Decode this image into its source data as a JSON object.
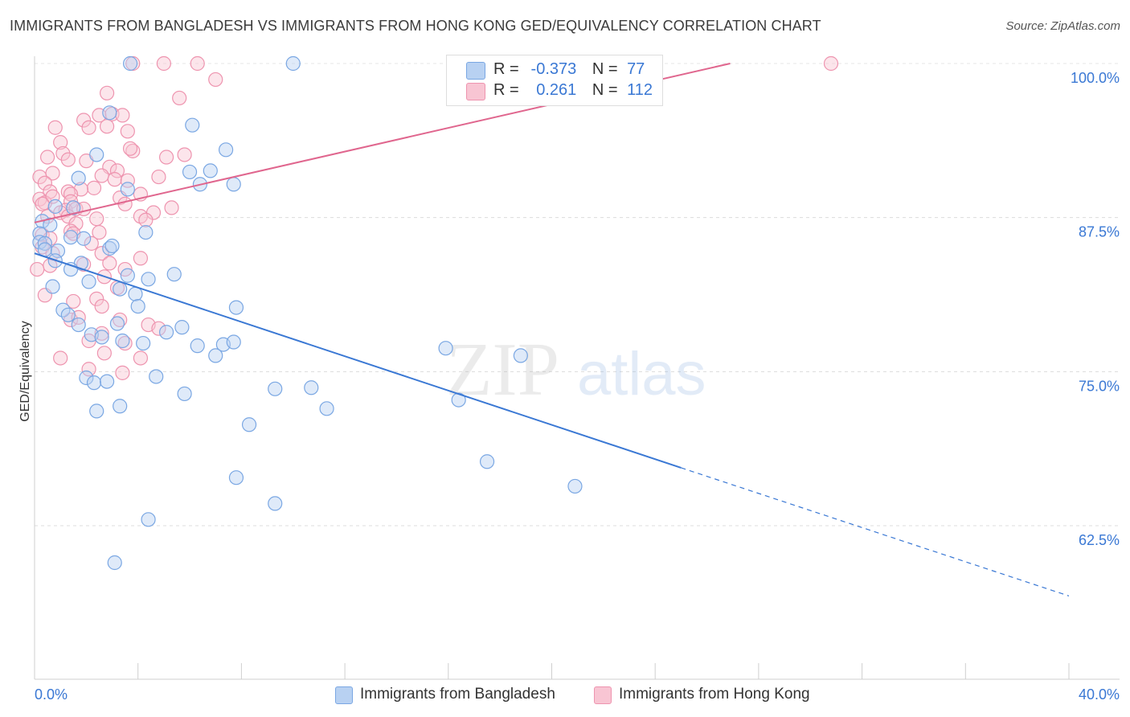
{
  "title": "IMMIGRANTS FROM BANGLADESH VS IMMIGRANTS FROM HONG KONG GED/EQUIVALENCY CORRELATION CHART",
  "source": "Source: ZipAtlas.com",
  "watermark": {
    "zip": "ZIP",
    "atlas": "atlas"
  },
  "colors": {
    "blue_fill": "#b8d1f2",
    "blue_stroke": "#7aa7e3",
    "blue_line": "#3a78d4",
    "pink_fill": "#f8c5d3",
    "pink_stroke": "#ee94af",
    "pink_line": "#e0668e",
    "axis_text": "#3a78d4"
  },
  "legend": {
    "r_label": "R =",
    "n_label": "N =",
    "rows": [
      {
        "r": "-0.373",
        "n": "77"
      },
      {
        "r": "0.261",
        "n": "112"
      }
    ]
  },
  "chart_data": {
    "type": "scatter",
    "xlabel": "",
    "ylabel": "GED/Equivalency",
    "xlim": [
      0,
      40
    ],
    "ylim": [
      52,
      101.5
    ],
    "x_tick_labels": [
      "0.0%",
      "40.0%"
    ],
    "y_ticks": [
      62.5,
      75.0,
      87.5,
      100.0
    ],
    "y_tick_labels": [
      "62.5%",
      "75.0%",
      "87.5%",
      "100.0%"
    ],
    "grid": true,
    "legend_position": "top-center",
    "series": [
      {
        "name": "Immigrants from Bangladesh",
        "color": "#7aa7e3",
        "trend": {
          "x": [
            0,
            25,
            40
          ],
          "y": [
            84.6,
            67.2,
            56.8
          ],
          "solid_until": 25
        },
        "points": [
          [
            3.7,
            100
          ],
          [
            10,
            100
          ],
          [
            6.1,
            95
          ],
          [
            2.9,
            96
          ],
          [
            7.4,
            93
          ],
          [
            2.4,
            92.6
          ],
          [
            6,
            91.2
          ],
          [
            6.8,
            91.3
          ],
          [
            1.7,
            90.7
          ],
          [
            6.4,
            90.2
          ],
          [
            7.7,
            90.2
          ],
          [
            3.6,
            89.8
          ],
          [
            0.8,
            88.4
          ],
          [
            1.5,
            88.3
          ],
          [
            0.3,
            87.2
          ],
          [
            0.6,
            86.9
          ],
          [
            4.3,
            86.3
          ],
          [
            0.2,
            86.2
          ],
          [
            0.2,
            85.5
          ],
          [
            0.4,
            85.4
          ],
          [
            1.4,
            85.9
          ],
          [
            1.9,
            85.8
          ],
          [
            2.9,
            85
          ],
          [
            3,
            85.2
          ],
          [
            0.4,
            84.9
          ],
          [
            0.9,
            84.8
          ],
          [
            0.8,
            84
          ],
          [
            1.8,
            83.8
          ],
          [
            1.4,
            83.3
          ],
          [
            2.1,
            82.3
          ],
          [
            3.6,
            82.8
          ],
          [
            4.4,
            82.5
          ],
          [
            5.4,
            82.9
          ],
          [
            0.7,
            81.9
          ],
          [
            3.3,
            81.7
          ],
          [
            3.9,
            81.3
          ],
          [
            1.1,
            80
          ],
          [
            1.3,
            79.6
          ],
          [
            4,
            80.3
          ],
          [
            7.8,
            80.2
          ],
          [
            3.2,
            78.9
          ],
          [
            1.7,
            78.8
          ],
          [
            2.2,
            78
          ],
          [
            5.1,
            78.2
          ],
          [
            5.7,
            78.6
          ],
          [
            2.6,
            77.8
          ],
          [
            3.4,
            77.5
          ],
          [
            4.2,
            77.3
          ],
          [
            6.3,
            77.1
          ],
          [
            7.3,
            77.2
          ],
          [
            7.7,
            77.4
          ],
          [
            7,
            76.3
          ],
          [
            15.9,
            76.9
          ],
          [
            18.8,
            76.3
          ],
          [
            2,
            74.5
          ],
          [
            2.3,
            74.1
          ],
          [
            2.8,
            74.2
          ],
          [
            4.7,
            74.6
          ],
          [
            9.3,
            73.6
          ],
          [
            10.7,
            73.7
          ],
          [
            5.8,
            73.2
          ],
          [
            16.4,
            72.7
          ],
          [
            2.4,
            71.8
          ],
          [
            3.3,
            72.2
          ],
          [
            11.3,
            72
          ],
          [
            8.3,
            70.7
          ],
          [
            17.5,
            67.7
          ],
          [
            7.8,
            66.4
          ],
          [
            20.9,
            65.7
          ],
          [
            9.3,
            64.3
          ],
          [
            4.4,
            63
          ],
          [
            3.1,
            59.5
          ]
        ]
      },
      {
        "name": "Immigrants from Hong Kong",
        "color": "#ee94af",
        "trend": {
          "x": [
            0,
            26.9
          ],
          "y": [
            87.1,
            100
          ],
          "solid_until": 26.9
        },
        "points": [
          [
            3.8,
            100
          ],
          [
            5,
            100
          ],
          [
            6.3,
            100
          ],
          [
            30.8,
            100
          ],
          [
            7,
            98.7
          ],
          [
            2.8,
            97.6
          ],
          [
            5.6,
            97.2
          ],
          [
            2.5,
            95.8
          ],
          [
            3,
            95.9
          ],
          [
            3.4,
            95.8
          ],
          [
            1.9,
            95.4
          ],
          [
            2.1,
            94.8
          ],
          [
            0.8,
            94.8
          ],
          [
            2.8,
            94.9
          ],
          [
            3.6,
            94.5
          ],
          [
            1,
            93.6
          ],
          [
            1.1,
            92.7
          ],
          [
            3.8,
            92.9
          ],
          [
            3.7,
            93.1
          ],
          [
            5.8,
            92.6
          ],
          [
            5.1,
            92.4
          ],
          [
            1.3,
            92.2
          ],
          [
            0.5,
            92.4
          ],
          [
            2,
            92.1
          ],
          [
            2.9,
            91.6
          ],
          [
            3.2,
            91.3
          ],
          [
            0.2,
            90.8
          ],
          [
            0.7,
            91.1
          ],
          [
            2.6,
            90.9
          ],
          [
            3.1,
            90.6
          ],
          [
            3.6,
            90.5
          ],
          [
            4.8,
            90.8
          ],
          [
            0.4,
            90.3
          ],
          [
            0.6,
            89.6
          ],
          [
            1.3,
            89.6
          ],
          [
            2.3,
            89.9
          ],
          [
            1.8,
            89.8
          ],
          [
            0.2,
            89
          ],
          [
            0.4,
            88.7
          ],
          [
            0.7,
            89.2
          ],
          [
            1.4,
            89.4
          ],
          [
            1.4,
            88.8
          ],
          [
            3.3,
            89.1
          ],
          [
            4.1,
            89.4
          ],
          [
            0.3,
            88.6
          ],
          [
            1.2,
            88.1
          ],
          [
            1.6,
            88.2
          ],
          [
            5.3,
            88.3
          ],
          [
            3.5,
            88.6
          ],
          [
            1.9,
            88.2
          ],
          [
            0.5,
            87.6
          ],
          [
            1,
            87.9
          ],
          [
            1.3,
            87.6
          ],
          [
            2.4,
            87.4
          ],
          [
            4.1,
            87.6
          ],
          [
            1.6,
            87
          ],
          [
            4.6,
            87.9
          ],
          [
            4.3,
            87.3
          ],
          [
            1.4,
            86.4
          ],
          [
            1.5,
            86.2
          ],
          [
            2.5,
            86.3
          ],
          [
            0.3,
            86.1
          ],
          [
            0.6,
            85.8
          ],
          [
            2.2,
            85.4
          ],
          [
            0.3,
            85.1
          ],
          [
            0.7,
            84.6
          ],
          [
            2.6,
            84.6
          ],
          [
            4.1,
            84.2
          ],
          [
            0.6,
            83.6
          ],
          [
            1.9,
            83.7
          ],
          [
            2.9,
            83.8
          ],
          [
            3.5,
            83.3
          ],
          [
            0.1,
            83.3
          ],
          [
            2.7,
            82.7
          ],
          [
            3.2,
            81.8
          ],
          [
            0.4,
            81.2
          ],
          [
            2.4,
            80.9
          ],
          [
            1.5,
            80.7
          ],
          [
            2.6,
            80.3
          ],
          [
            1.4,
            79.2
          ],
          [
            1.7,
            79.4
          ],
          [
            3.3,
            79.2
          ],
          [
            4.4,
            78.8
          ],
          [
            2.6,
            78.1
          ],
          [
            4.8,
            78.5
          ],
          [
            2.1,
            77.5
          ],
          [
            3.5,
            77.3
          ],
          [
            2.7,
            76.5
          ],
          [
            1,
            76.1
          ],
          [
            4.1,
            76.1
          ],
          [
            2.1,
            75.2
          ],
          [
            3.4,
            74.9
          ]
        ]
      }
    ]
  }
}
